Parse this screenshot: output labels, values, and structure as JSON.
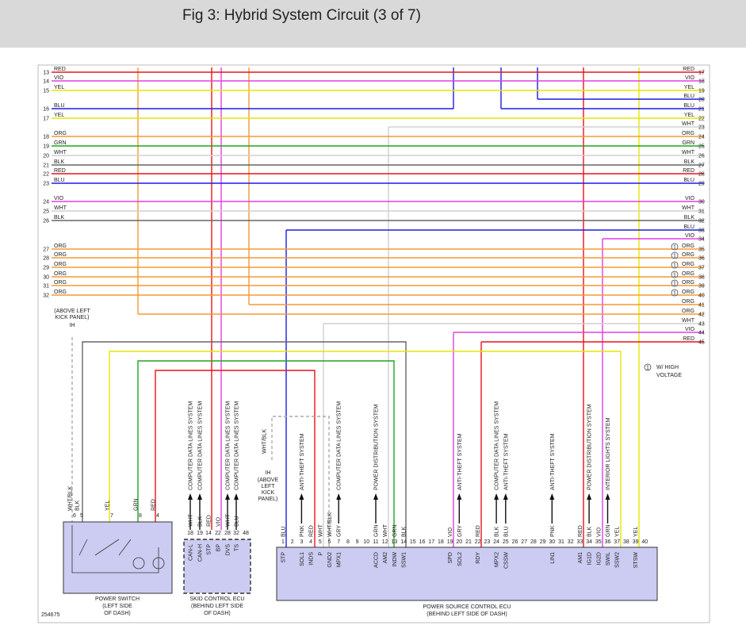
{
  "header": {
    "title": "Fig 3: Hybrid System Circuit (3 of 7)"
  },
  "rows": [
    {
      "left_pin": "13",
      "left_wire": "RED",
      "right_wire": "RED",
      "right_pin": "17",
      "color": "#e8141b"
    },
    {
      "left_pin": "14",
      "left_wire": "VIO",
      "right_wire": "VIO",
      "right_pin": "18",
      "color": "#e040e0"
    },
    {
      "left_pin": "15",
      "left_wire": "YEL",
      "right_wire": "YEL",
      "right_pin": "19",
      "color": "#e6e600"
    },
    {
      "right_wire": "BLU",
      "right_pin": "20",
      "color": "#1c1ce6"
    },
    {
      "left_pin": "16",
      "left_wire": "BLU",
      "right_wire": "BLU",
      "right_pin": "21",
      "color": "#1c1ce6"
    },
    {
      "left_pin": "17",
      "left_wire": "YEL",
      "right_wire": "YEL",
      "right_pin": "22",
      "color": "#e6e600"
    },
    {
      "right_wire": "WHT",
      "right_pin": "23",
      "color": "#d0d0d0"
    },
    {
      "left_pin": "18",
      "left_wire": "ORG",
      "right_wire": "ORG",
      "right_pin": "24",
      "color": "#f39a35"
    },
    {
      "left_pin": "19",
      "left_wire": "GRN",
      "right_wire": "GRN",
      "right_pin": "25",
      "color": "#1fa51f"
    },
    {
      "left_pin": "20",
      "left_wire": "WHT",
      "right_wire": "WHT",
      "right_pin": "26",
      "color": "#d0d0d0"
    },
    {
      "left_pin": "21",
      "left_wire": "BLK",
      "right_wire": "BLK",
      "right_pin": "27",
      "color": "#666666"
    },
    {
      "left_pin": "22",
      "left_wire": "RED",
      "right_wire": "RED",
      "right_pin": "28",
      "color": "#e8141b"
    },
    {
      "left_pin": "23",
      "left_wire": "BLU",
      "right_wire": "BLU",
      "right_pin": "29",
      "color": "#1c1ce6"
    },
    {
      "left_pin": "24",
      "left_wire": "VIO",
      "right_wire": "VIO",
      "right_pin": "30",
      "color": "#e040e0"
    },
    {
      "left_pin": "25",
      "left_wire": "WHT",
      "right_wire": "WHT",
      "right_pin": "31",
      "color": "#d0d0d0"
    },
    {
      "left_pin": "26",
      "left_wire": "BLK",
      "right_wire": "BLK",
      "right_pin": "32",
      "color": "#666666"
    },
    {
      "right_wire": "BLU",
      "right_pin": "33",
      "color": "#1c1ce6"
    },
    {
      "right_wire": "VIO",
      "right_pin": "34",
      "color": "#e040e0"
    },
    {
      "left_pin": "27",
      "left_wire": "ORG",
      "right_wire": "ORG",
      "right_pin": "35",
      "marker": "1",
      "color": "#f39a35"
    },
    {
      "left_pin": "28",
      "left_wire": "ORG",
      "right_wire": "ORG",
      "right_pin": "36",
      "marker": "1",
      "color": "#f39a35"
    },
    {
      "left_pin": "29",
      "left_wire": "ORG",
      "right_wire": "ORG",
      "right_pin": "37",
      "marker": "1",
      "color": "#f39a35"
    },
    {
      "left_pin": "30",
      "left_wire": "ORG",
      "right_wire": "ORG",
      "right_pin": "38",
      "marker": "1",
      "color": "#f39a35"
    },
    {
      "left_pin": "31",
      "left_wire": "ORG",
      "right_wire": "ORG",
      "right_pin": "39",
      "marker": "1",
      "color": "#f39a35"
    },
    {
      "left_pin": "32",
      "left_wire": "ORG",
      "right_wire": "ORG",
      "right_pin": "40",
      "marker": "1",
      "color": "#f39a35"
    },
    {
      "right_wire": "ORG",
      "right_pin": "41",
      "color": "#f39a35"
    },
    {
      "right_wire": "ORG",
      "right_pin": "42",
      "color": "#f39a35"
    },
    {
      "right_wire": "WHT",
      "right_pin": "43",
      "color": "#d0d0d0"
    },
    {
      "right_wire": "VIO",
      "right_pin": "44",
      "color": "#e040e0"
    },
    {
      "right_wire": "RED",
      "right_pin": "45",
      "color": "#e8141b"
    }
  ],
  "note": {
    "symbol": "1",
    "lines": [
      "W/ HIGH",
      "VOLTAGE"
    ]
  },
  "location_1": {
    "lines": [
      "(ABOVE LEFT",
      "KICK PANEL)"
    ],
    "connector": "IH"
  },
  "location_2": {
    "connector": "IH",
    "lines": [
      "(ABOVE",
      "LEFT",
      "KICK",
      "PANEL)"
    ],
    "wire": "WHT/BLK"
  },
  "power_switch": {
    "caption": [
      "POWER SWITCH",
      "(LEFT SIDE",
      "OF DASH)"
    ],
    "pins": [
      {
        "pin": "6",
        "wire": "WHT/BLK"
      },
      {
        "pin": "5",
        "wire": "BLK"
      },
      {
        "pin": "7",
        "wire": "YEL"
      },
      {
        "pin": "8",
        "wire": "GRN"
      },
      {
        "pin": "4",
        "wire": "RED"
      }
    ]
  },
  "skid_ecu": {
    "caption": [
      "SKID CONTROL ECU",
      "(BEHIND LEFT SIDE",
      "OF DASH)"
    ],
    "pins": [
      {
        "pin": "18",
        "wire": "WHT",
        "name": "CAN-L",
        "system": "COMPUTER DATA LINES SYSTEM"
      },
      {
        "pin": "19",
        "wire": "BLK",
        "name": "CAN-H",
        "system": "COMPUTER DATA LINES SYSTEM"
      },
      {
        "pin": "14",
        "wire": "RED",
        "name": "STP"
      },
      {
        "pin": "22",
        "wire": "VIO",
        "name": "BP"
      },
      {
        "pin": "28",
        "wire": "WHT",
        "name": "DVS",
        "system": "COMPUTER DATA LINES SYSTEM"
      },
      {
        "pin": "32",
        "wire": "BLU",
        "name": "TS",
        "system": "COMPUTER DATA LINES SYSTEM"
      },
      {
        "pin": "48"
      }
    ]
  },
  "power_source_ecu": {
    "caption": [
      "POWER SOURCE CONTROL ECU",
      "(BEHIND LEFT SIDE OF DASH)"
    ],
    "pins": [
      {
        "pin": "1",
        "wire": "BLU",
        "name": "STP"
      },
      {
        "pin": "2"
      },
      {
        "pin": "3",
        "wire": "PNK",
        "name": "SOL1",
        "system": "ANTI-THEFT SYSTEM"
      },
      {
        "pin": "4",
        "wire": "RED",
        "name": "INDS"
      },
      {
        "pin": "5",
        "wire": "WHT",
        "name": "P"
      },
      {
        "pin": "6",
        "wire": "WHT/BLK",
        "name": "GND2"
      },
      {
        "pin": "7",
        "wire": "GRY",
        "name": "MPX1",
        "system": "COMPUTER DATA LINES SYSTEM"
      },
      {
        "pin": "8"
      },
      {
        "pin": "9"
      },
      {
        "pin": "10"
      },
      {
        "pin": "11",
        "wire": "GRN",
        "name": "ACCD",
        "system": "POWER DISTRIBUTION SYSTEM"
      },
      {
        "pin": "12",
        "wire": "WHT",
        "name": "AM2"
      },
      {
        "pin": "13",
        "wire": "GRN",
        "name": "INDW"
      },
      {
        "pin": "14",
        "wire": "BLK",
        "name": "SSW1"
      },
      {
        "pin": "15"
      },
      {
        "pin": "16"
      },
      {
        "pin": "17"
      },
      {
        "pin": "18"
      },
      {
        "pin": "19",
        "wire": "VIO",
        "name": "SPD"
      },
      {
        "pin": "20",
        "wire": "GRY",
        "name": "SOL2",
        "system": "ANTI-THEFT SYSTEM"
      },
      {
        "pin": "21"
      },
      {
        "pin": "22",
        "wire": "RED",
        "name": "RDY"
      },
      {
        "pin": "23"
      },
      {
        "pin": "24",
        "wire": "BLK",
        "name": "MPX2",
        "system": "COMPUTER DATA LINES SYSTEM"
      },
      {
        "pin": "25",
        "wire": "BLU",
        "name": "CSSW",
        "system": "ANTI-THEFT SYSTEM"
      },
      {
        "pin": "26"
      },
      {
        "pin": "27"
      },
      {
        "pin": "28"
      },
      {
        "pin": "29"
      },
      {
        "pin": "30",
        "wire": "PNK",
        "name": "LIN1",
        "system": "ANTI-THEFT SYSTEM"
      },
      {
        "pin": "31"
      },
      {
        "pin": "32"
      },
      {
        "pin": "33",
        "wire": "RED",
        "name": "AM1"
      },
      {
        "pin": "34",
        "wire": "BLK",
        "name": "IG1D",
        "system": "POWER DISTRIBUTION SYSTEM"
      },
      {
        "pin": "35",
        "wire": "VIO",
        "name": "IG2D"
      },
      {
        "pin": "36",
        "wire": "GRN",
        "name": "SWIL",
        "system": "INTERIOR LIGHTS SYSTEM"
      },
      {
        "pin": "37",
        "wire": "YEL",
        "name": "SSW2"
      },
      {
        "pin": "38"
      },
      {
        "pin": "39",
        "wire": "YEL",
        "name": "STSW"
      },
      {
        "pin": "40"
      }
    ]
  },
  "figure_id": "254675"
}
